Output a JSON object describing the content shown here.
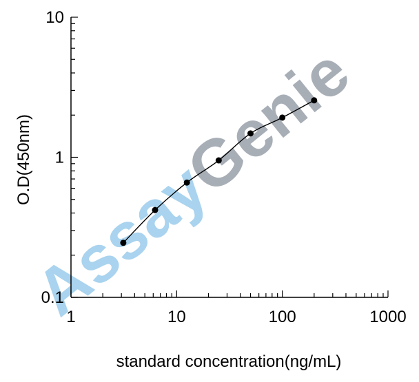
{
  "watermark": {
    "part1": "Assay",
    "part2": "Genie",
    "color1": "#a9d3ee",
    "color2": "#a7aeb6"
  },
  "chart_data": {
    "type": "line",
    "title": "",
    "xlabel": "standard concentration(ng/mL)",
    "ylabel": "O.D(450nm)",
    "xscale": "log",
    "yscale": "log",
    "xlim": [
      1,
      1000
    ],
    "ylim": [
      0.1,
      10
    ],
    "grid": false,
    "xticks": [
      {
        "value": 1,
        "label": "1"
      },
      {
        "value": 10,
        "label": "10"
      },
      {
        "value": 100,
        "label": "100"
      },
      {
        "value": 1000,
        "label": "1000"
      }
    ],
    "yticks": [
      {
        "value": 0.1,
        "label": "0.1"
      },
      {
        "value": 1,
        "label": "1"
      },
      {
        "value": 10,
        "label": "10"
      }
    ],
    "series": [
      {
        "marker": "circle",
        "color": "#000000",
        "x": [
          3.125,
          6.25,
          12.5,
          25,
          50,
          100,
          200
        ],
        "y": [
          0.245,
          0.42,
          0.66,
          0.95,
          1.48,
          1.92,
          2.55
        ]
      }
    ]
  }
}
